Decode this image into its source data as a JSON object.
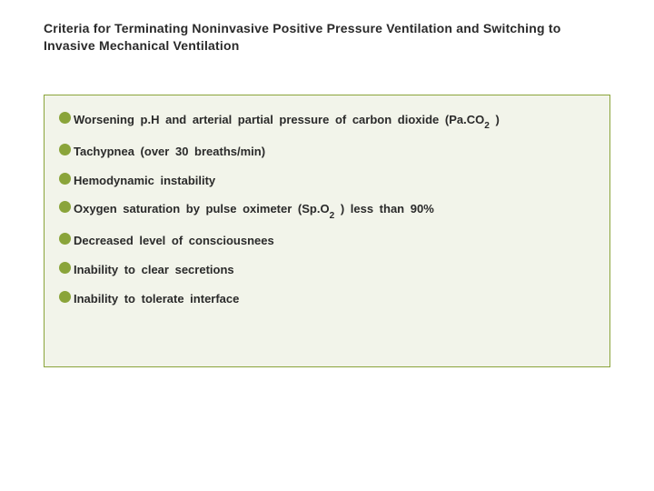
{
  "title": "Criteria for Terminating Noninvasive Positive Pressure Ventilation and Switching to Invasive Mechanical Ventilation",
  "bullet_color": "#8aa43a",
  "panel_bg": "#f2f4ea",
  "panel_border": "#8aa43a",
  "items": [
    {
      "html": "Worsening p.H and arterial partial pressure of carbon dioxide (Pa.CO<span class=\"sub\">2</span> )"
    },
    {
      "html": "Tachypnea (over 30 breaths/min)"
    },
    {
      "html": "Hemodynamic instability"
    },
    {
      "html": "Oxygen saturation by pulse oximeter (Sp.O<span class=\"sub\">2</span> ) less than 90%"
    },
    {
      "html": "Decreased level of consciousnees"
    },
    {
      "html": "Inability to clear secretions"
    },
    {
      "html": "Inability to tolerate interface"
    }
  ]
}
